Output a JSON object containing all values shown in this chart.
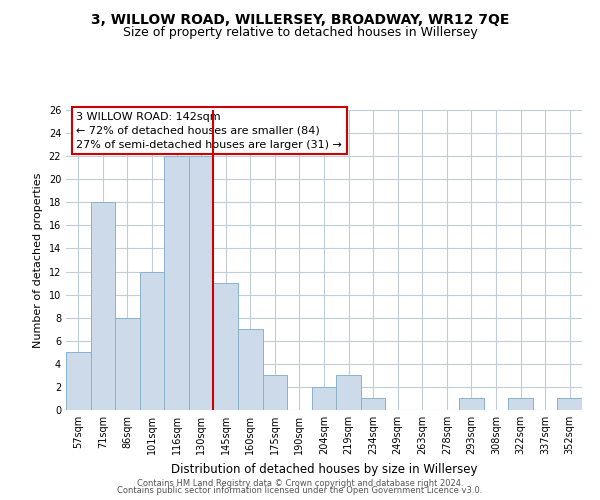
{
  "title": "3, WILLOW ROAD, WILLERSEY, BROADWAY, WR12 7QE",
  "subtitle": "Size of property relative to detached houses in Willersey",
  "xlabel": "Distribution of detached houses by size in Willersey",
  "ylabel": "Number of detached properties",
  "bar_labels": [
    "57sqm",
    "71sqm",
    "86sqm",
    "101sqm",
    "116sqm",
    "130sqm",
    "145sqm",
    "160sqm",
    "175sqm",
    "190sqm",
    "204sqm",
    "219sqm",
    "234sqm",
    "249sqm",
    "263sqm",
    "278sqm",
    "293sqm",
    "308sqm",
    "322sqm",
    "337sqm",
    "352sqm"
  ],
  "bar_values": [
    5,
    18,
    8,
    12,
    22,
    22,
    11,
    7,
    3,
    0,
    2,
    3,
    1,
    0,
    0,
    0,
    1,
    0,
    1,
    0,
    1
  ],
  "bar_color": "#ccdaea",
  "bar_edge_color": "#8ab4cc",
  "red_line_label": "145sqm",
  "red_line_color": "#cc0000",
  "ylim": [
    0,
    26
  ],
  "yticks": [
    0,
    2,
    4,
    6,
    8,
    10,
    12,
    14,
    16,
    18,
    20,
    22,
    24,
    26
  ],
  "annotation_title": "3 WILLOW ROAD: 142sqm",
  "annotation_line1": "← 72% of detached houses are smaller (84)",
  "annotation_line2": "27% of semi-detached houses are larger (31) →",
  "annotation_box_color": "#cc0000",
  "footer1": "Contains HM Land Registry data © Crown copyright and database right 2024.",
  "footer2": "Contains public sector information licensed under the Open Government Licence v3.0.",
  "background_color": "#ffffff",
  "grid_color": "#c0ccd8",
  "title_fontsize": 10,
  "subtitle_fontsize": 9
}
